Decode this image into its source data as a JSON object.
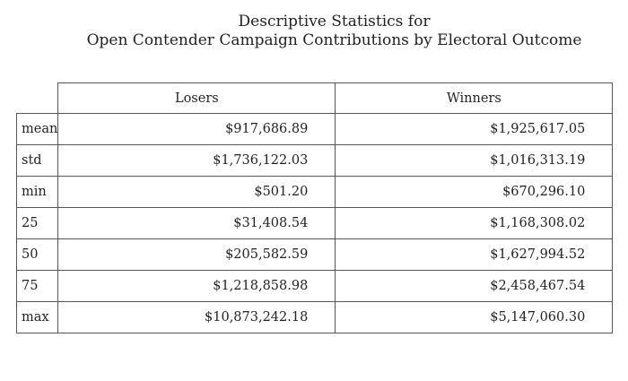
{
  "title": {
    "line1": "Descriptive Statistics for",
    "line2": "Open Contender Campaign Contributions by Electoral Outcome"
  },
  "table": {
    "columns": [
      "Losers",
      "Winners"
    ],
    "rows": [
      {
        "label": "mean",
        "values": [
          "$917,686.89",
          "$1,925,617.05"
        ]
      },
      {
        "label": "std",
        "values": [
          "$1,736,122.03",
          "$1,016,313.19"
        ]
      },
      {
        "label": "min",
        "values": [
          "$501.20",
          "$670,296.10"
        ]
      },
      {
        "label": "25",
        "values": [
          "$31,408.54",
          "$1,168,308.02"
        ]
      },
      {
        "label": "50",
        "values": [
          "$205,582.59",
          "$1,627,994.52"
        ]
      },
      {
        "label": "75",
        "values": [
          "$1,218,858.98",
          "$2,458,467.54"
        ]
      },
      {
        "label": "max",
        "values": [
          "$10,873,242.18",
          "$5,147,060.30"
        ]
      }
    ]
  }
}
